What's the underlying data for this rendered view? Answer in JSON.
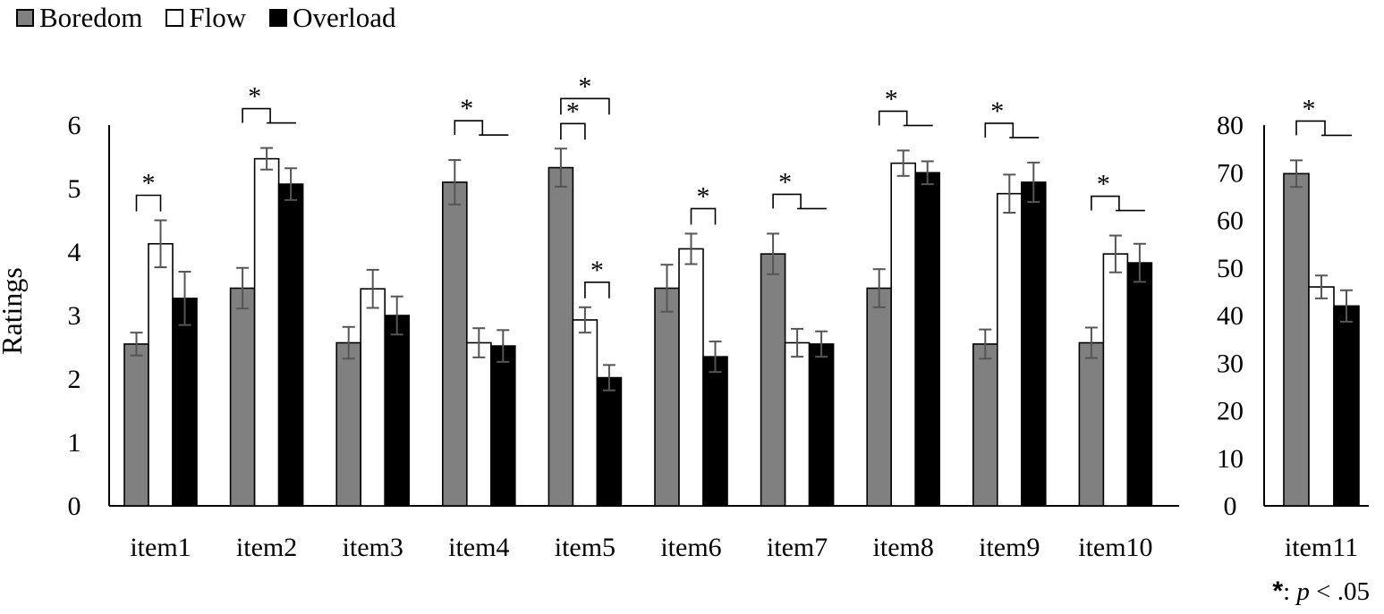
{
  "legend": {
    "items": [
      {
        "label": "Boredom",
        "color": "#808080"
      },
      {
        "label": "Flow",
        "color": "#ffffff"
      },
      {
        "label": "Overload",
        "color": "#000000"
      }
    ]
  },
  "footnote": {
    "symbol": "*",
    "sep": ":",
    "p": "p",
    "rest": "< .05"
  },
  "chart_data": [
    {
      "type": "bar",
      "title": "",
      "xlabel": "",
      "ylabel": "Ratings",
      "ylim": [
        0,
        6
      ],
      "yticks": [
        0,
        1,
        2,
        3,
        4,
        5,
        6
      ],
      "categories": [
        "item1",
        "item2",
        "item3",
        "item4",
        "item5",
        "item6",
        "item7",
        "item8",
        "item9",
        "item10"
      ],
      "series": [
        {
          "name": "Boredom",
          "color": "#808080",
          "values": [
            2.55,
            3.43,
            2.57,
            5.1,
            5.33,
            3.43,
            3.97,
            3.43,
            2.55,
            2.57
          ],
          "errors": [
            0.18,
            0.32,
            0.25,
            0.35,
            0.3,
            0.37,
            0.32,
            0.3,
            0.23,
            0.24
          ]
        },
        {
          "name": "Flow",
          "color": "#ffffff",
          "values": [
            4.13,
            5.47,
            3.42,
            2.57,
            2.93,
            4.05,
            2.57,
            5.4,
            4.92,
            3.97
          ],
          "errors": [
            0.37,
            0.17,
            0.3,
            0.23,
            0.2,
            0.24,
            0.22,
            0.2,
            0.3,
            0.29
          ]
        },
        {
          "name": "Overload",
          "color": "#000000",
          "values": [
            3.27,
            5.07,
            3.0,
            2.52,
            2.02,
            2.35,
            2.55,
            5.25,
            5.1,
            3.83
          ],
          "errors": [
            0.42,
            0.25,
            0.3,
            0.25,
            0.2,
            0.24,
            0.2,
            0.18,
            0.31,
            0.3
          ]
        }
      ],
      "significance": [
        {
          "category": "item1",
          "type": "pair",
          "from": "Boredom",
          "to": "Flow",
          "label": "*"
        },
        {
          "category": "item2",
          "type": "split",
          "label": "*"
        },
        {
          "category": "item4",
          "type": "split",
          "label": "*"
        },
        {
          "category": "item5",
          "type": "pair",
          "from": "Boredom",
          "to": "Flow",
          "label": "*"
        },
        {
          "category": "item5",
          "type": "pair",
          "from": "Flow",
          "to": "Overload",
          "label": "*"
        },
        {
          "category": "item5",
          "type": "pair",
          "from": "Boredom",
          "to": "Overload",
          "label": "*"
        },
        {
          "category": "item6",
          "type": "pair",
          "from": "Flow",
          "to": "Overload",
          "label": "*"
        },
        {
          "category": "item7",
          "type": "split",
          "label": "*"
        },
        {
          "category": "item8",
          "type": "split",
          "label": "*"
        },
        {
          "category": "item9",
          "type": "split",
          "label": "*"
        },
        {
          "category": "item10",
          "type": "split",
          "label": "*"
        }
      ]
    },
    {
      "type": "bar",
      "title": "",
      "xlabel": "",
      "ylabel": "",
      "ylim": [
        0,
        80
      ],
      "yticks": [
        0,
        10,
        20,
        30,
        40,
        50,
        60,
        70,
        80
      ],
      "categories": [
        "item11"
      ],
      "series": [
        {
          "name": "Boredom",
          "color": "#808080",
          "values": [
            69.8
          ],
          "errors": [
            2.8
          ]
        },
        {
          "name": "Flow",
          "color": "#ffffff",
          "values": [
            46.0
          ],
          "errors": [
            2.4
          ]
        },
        {
          "name": "Overload",
          "color": "#000000",
          "values": [
            42.0
          ],
          "errors": [
            3.3
          ]
        }
      ],
      "significance": [
        {
          "category": "item11",
          "type": "split",
          "label": "*"
        }
      ]
    }
  ]
}
